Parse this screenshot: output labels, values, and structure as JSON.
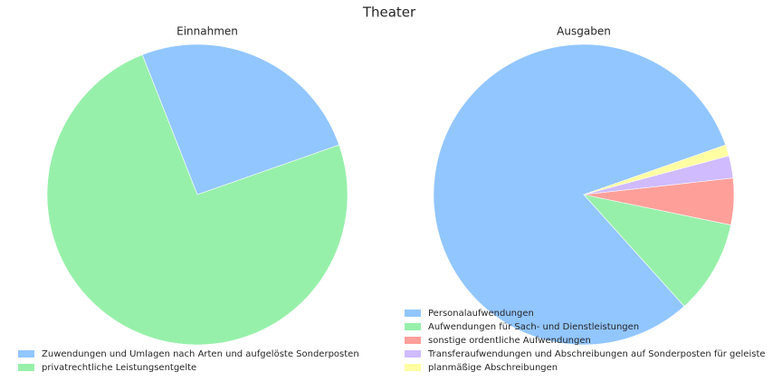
{
  "title": "Theater",
  "chart_data": [
    {
      "type": "pie",
      "title": "Einnahmen",
      "startangle": 19.3,
      "categories": [
        "Zuwendungen und Umlagen nach Arten und aufgelöste Sonderposten",
        "privatrechtliche Leistungsentgelte"
      ],
      "values": [
        25.6,
        74.4
      ],
      "colors": [
        "#92c6ff",
        "#97f0aa"
      ]
    },
    {
      "type": "pie",
      "title": "Ausgaben",
      "startangle": 19.3,
      "categories": [
        "Personalaufwendungen",
        "Aufwendungen für Sach- und Dienstleistungen",
        "sonstige ordentliche Aufwendungen",
        "Transferaufwendungen und Abschreibungen auf Sonderposten für geleiste",
        "planmäßige Abschreibungen"
      ],
      "values": [
        81.3,
        10.1,
        5.0,
        2.4,
        1.2
      ],
      "colors": [
        "#92c6ff",
        "#97f0aa",
        "#ff9f9a",
        "#d0bbff",
        "#fffea3"
      ]
    }
  ]
}
